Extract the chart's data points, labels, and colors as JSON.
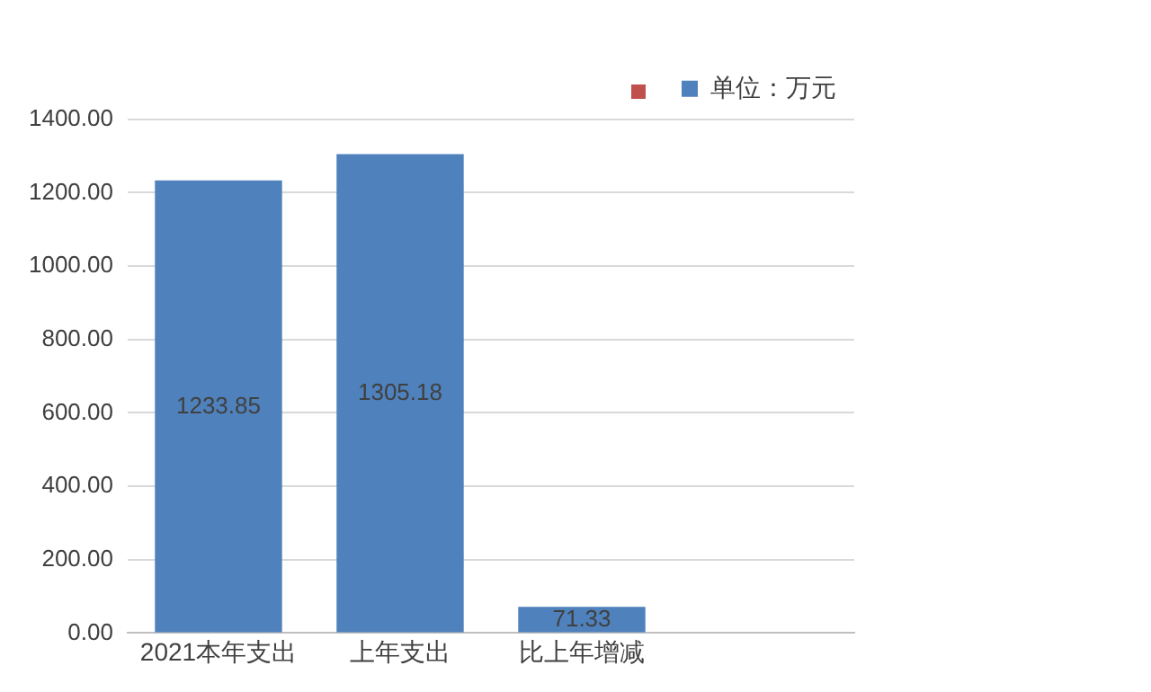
{
  "chart_data": {
    "type": "bar",
    "categories": [
      "2021本年支出",
      "上年支出",
      "比上年增减",
      null
    ],
    "series": [
      {
        "name": "单位：万元",
        "color": "#4f81bd",
        "values": [
          1233.85,
          1305.18,
          71.33,
          null
        ]
      }
    ],
    "ylim": [
      0,
      1400
    ],
    "yticks": [
      {
        "value": 0,
        "label": "0.00"
      },
      {
        "value": 200,
        "label": "200.00"
      },
      {
        "value": 400,
        "label": "400.00"
      },
      {
        "value": 600,
        "label": "600.00"
      },
      {
        "value": 800,
        "label": "800.00"
      },
      {
        "value": 1000,
        "label": "1000.00"
      },
      {
        "value": 1200,
        "label": "1200.00"
      },
      {
        "value": 1400,
        "label": "1400.00"
      }
    ],
    "grid": "y",
    "legend": "top right",
    "data_labels": true
  }
}
